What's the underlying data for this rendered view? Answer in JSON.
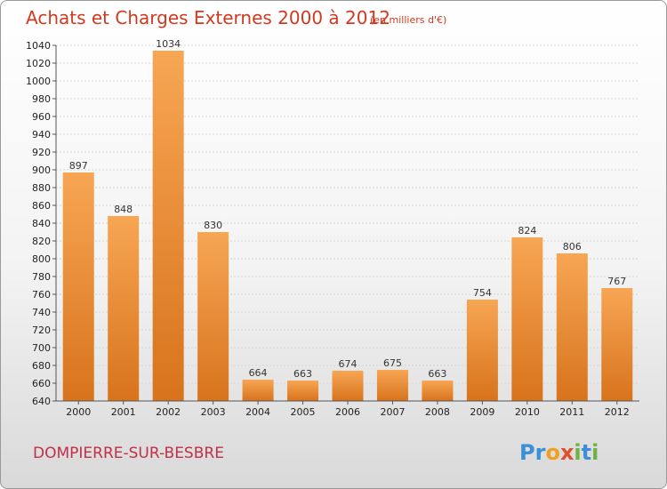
{
  "header": {
    "title": "Achats et Charges Externes 2000 à 2012",
    "unit": "(en milliers d'€)"
  },
  "footer": {
    "commune": "DOMPIERRE-SUR-BESBRE",
    "logo": "Proxiti"
  },
  "colors": {
    "bar_light": "#f7a654",
    "bar_dark": "#d8731c",
    "title": "#d03a1f",
    "commune": "#c0304a"
  },
  "chart_data": {
    "type": "bar",
    "title": "Achats et Charges Externes 2000 à 2012",
    "subtitle": "(en milliers d'€)",
    "xlabel": "",
    "ylabel": "",
    "categories": [
      "2000",
      "2001",
      "2002",
      "2003",
      "2004",
      "2005",
      "2006",
      "2007",
      "2008",
      "2009",
      "2010",
      "2011",
      "2012"
    ],
    "values": [
      897,
      848,
      1034,
      830,
      664,
      663,
      674,
      675,
      663,
      754,
      824,
      806,
      767
    ],
    "data_labels": [
      "897",
      "848",
      "1034",
      "830",
      "664",
      "663",
      "674",
      "675",
      "663",
      "754",
      "824",
      "806",
      "767"
    ],
    "ylim": [
      640,
      1040
    ],
    "yticks": [
      640,
      660,
      680,
      700,
      720,
      740,
      760,
      780,
      800,
      820,
      840,
      860,
      880,
      900,
      920,
      940,
      960,
      980,
      1000,
      1020,
      1040
    ],
    "grid": true,
    "legend": "none"
  }
}
